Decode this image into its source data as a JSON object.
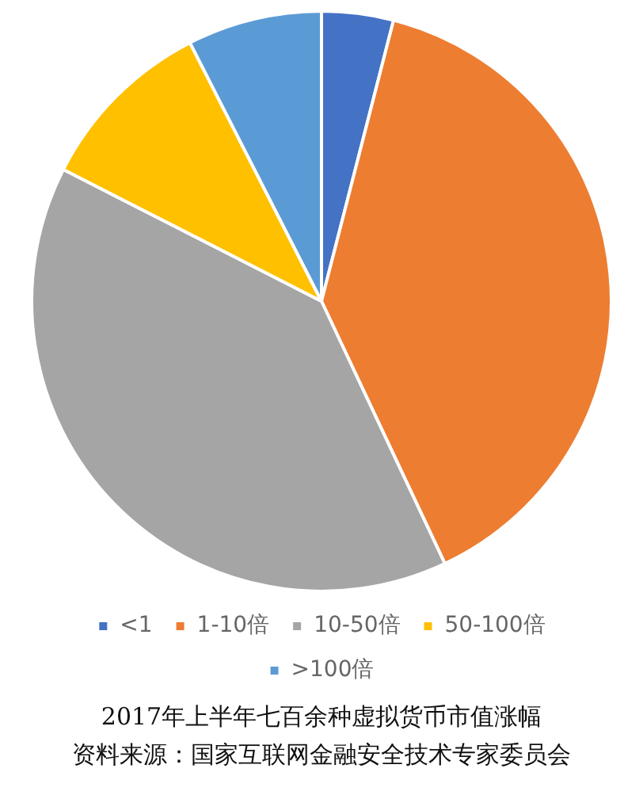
{
  "chart_data": {
    "type": "pie",
    "title": "2017年上半年七百余种虚拟货币市值涨幅",
    "annotations": [
      "资料来源：国家互联网金融安全技术专家委员会"
    ],
    "categories": [
      "<1",
      "1-10倍",
      "10-50倍",
      "50-100倍",
      ">100倍"
    ],
    "values": [
      4,
      39,
      39.5,
      10,
      7.5
    ],
    "colors": [
      "#4472c4",
      "#ed7d31",
      "#a5a5a5",
      "#ffc000",
      "#5b9bd5"
    ],
    "legend": "bottom"
  }
}
